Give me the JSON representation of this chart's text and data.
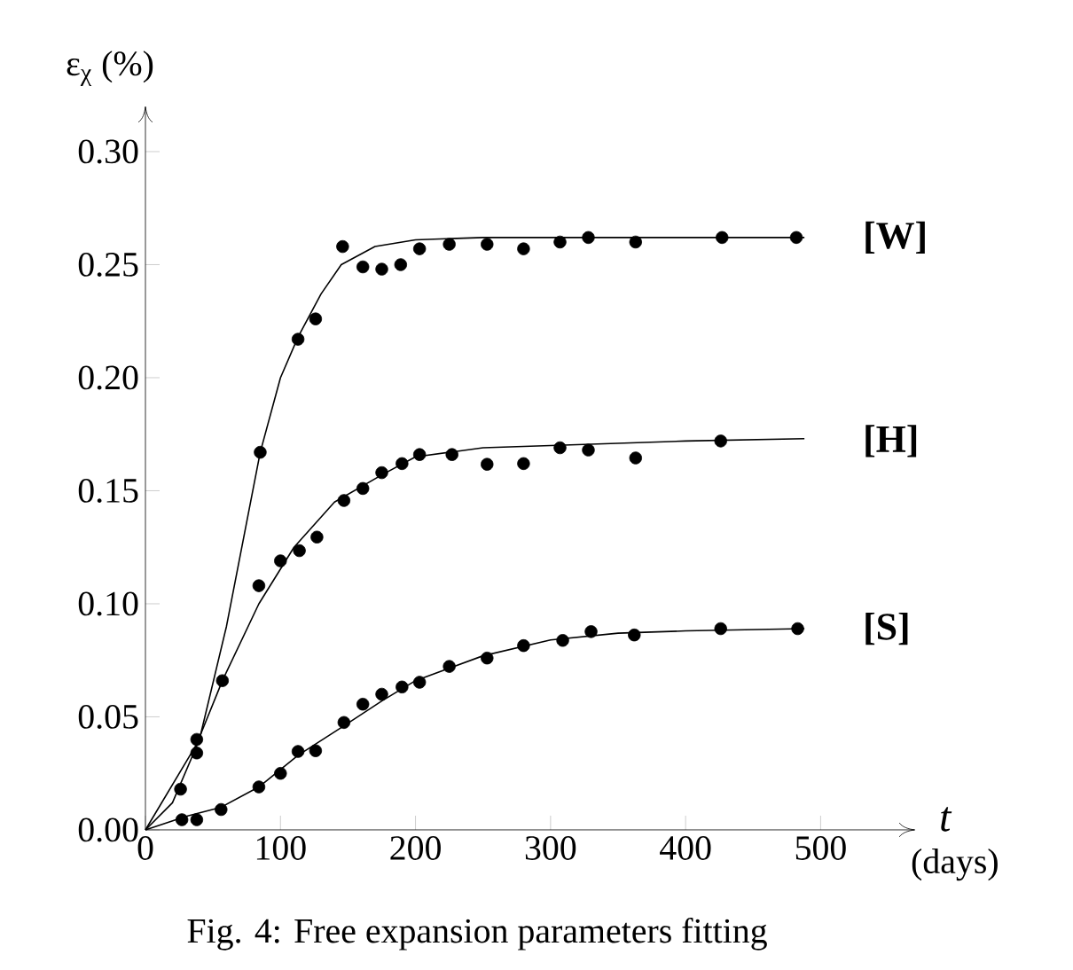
{
  "chart_data": {
    "type": "scatter",
    "title": "Fig. 4: Free expansion parameters fitting",
    "ylabel": "ε$_{χ}$ (%)",
    "xlabel": "t",
    "annotations": [
      "(days)"
    ],
    "xlim": [
      0,
      570
    ],
    "ylim": [
      0,
      0.32
    ],
    "xticks": [
      0,
      100,
      200,
      300,
      400,
      500
    ],
    "yticks": [
      {
        "value": 0,
        "label": "0.00"
      },
      {
        "value": 0.05,
        "label": "0.05"
      },
      {
        "value": 0.1,
        "label": "0.10"
      },
      {
        "value": 0.15,
        "label": "0.15"
      },
      {
        "value": 0.2,
        "label": "0.20"
      },
      {
        "value": 0.25,
        "label": "0.25"
      },
      {
        "value": 0.3,
        "label": "0.30"
      }
    ],
    "series": [
      {
        "name": "[W]",
        "marker": "circle",
        "color": "#000000",
        "x": [
          26,
          38,
          85,
          113,
          126,
          146,
          161,
          175,
          189,
          203,
          225,
          253,
          280,
          307,
          328,
          363,
          427,
          482
        ],
        "values": [
          0.018,
          0.04,
          0.167,
          0.217,
          0.226,
          0.258,
          0.249,
          0.248,
          0.25,
          0.257,
          0.259,
          0.259,
          0.257,
          0.26,
          0.262,
          0.26,
          0.262,
          0.262
        ]
      },
      {
        "name": "[H]",
        "marker": "circle",
        "color": "#000000",
        "x": [
          38,
          57,
          84,
          100,
          114,
          127,
          147,
          161,
          175,
          190,
          203,
          227,
          253,
          280,
          307,
          328,
          363,
          426
        ],
        "values": [
          0.034,
          0.066,
          0.108,
          0.119,
          0.1235,
          0.1295,
          0.1457,
          0.151,
          0.158,
          0.162,
          0.166,
          0.166,
          0.1617,
          0.162,
          0.169,
          0.168,
          0.1645,
          0.172
        ]
      },
      {
        "name": "[S]",
        "marker": "circle",
        "color": "#000000",
        "x": [
          27,
          38,
          56,
          84,
          100,
          113,
          126,
          147,
          161,
          175,
          190,
          203,
          225,
          253,
          280,
          309,
          330,
          362,
          426,
          483
        ],
        "values": [
          0.0045,
          0.0045,
          0.009,
          0.019,
          0.025,
          0.0347,
          0.035,
          0.0475,
          0.0556,
          0.06,
          0.0632,
          0.0653,
          0.0723,
          0.076,
          0.0815,
          0.0838,
          0.0877,
          0.0862,
          0.089,
          0.089
        ]
      },
      {
        "type": "line",
        "marker": "none",
        "color": "#000000",
        "x": [
          0,
          20,
          40,
          60,
          85,
          100,
          113,
          130,
          145,
          170,
          200,
          250,
          488
        ],
        "values": [
          0,
          0.012,
          0.04,
          0.09,
          0.167,
          0.2,
          0.218,
          0.237,
          0.25,
          0.258,
          0.261,
          0.262,
          0.262
        ]
      },
      {
        "type": "line",
        "marker": "none",
        "color": "#000000",
        "x": [
          0,
          38,
          57,
          84,
          110,
          140,
          175,
          200,
          250,
          300,
          400,
          488
        ],
        "values": [
          0,
          0.038,
          0.066,
          0.1,
          0.125,
          0.145,
          0.157,
          0.165,
          0.169,
          0.17,
          0.172,
          0.173
        ]
      },
      {
        "type": "line",
        "marker": "none",
        "color": "#000000",
        "x": [
          0,
          30,
          56,
          84,
          113,
          147,
          175,
          200,
          250,
          300,
          350,
          400,
          488
        ],
        "values": [
          0,
          0.006,
          0.01,
          0.019,
          0.033,
          0.046,
          0.057,
          0.066,
          0.077,
          0.084,
          0.087,
          0.088,
          0.089
        ]
      }
    ]
  }
}
